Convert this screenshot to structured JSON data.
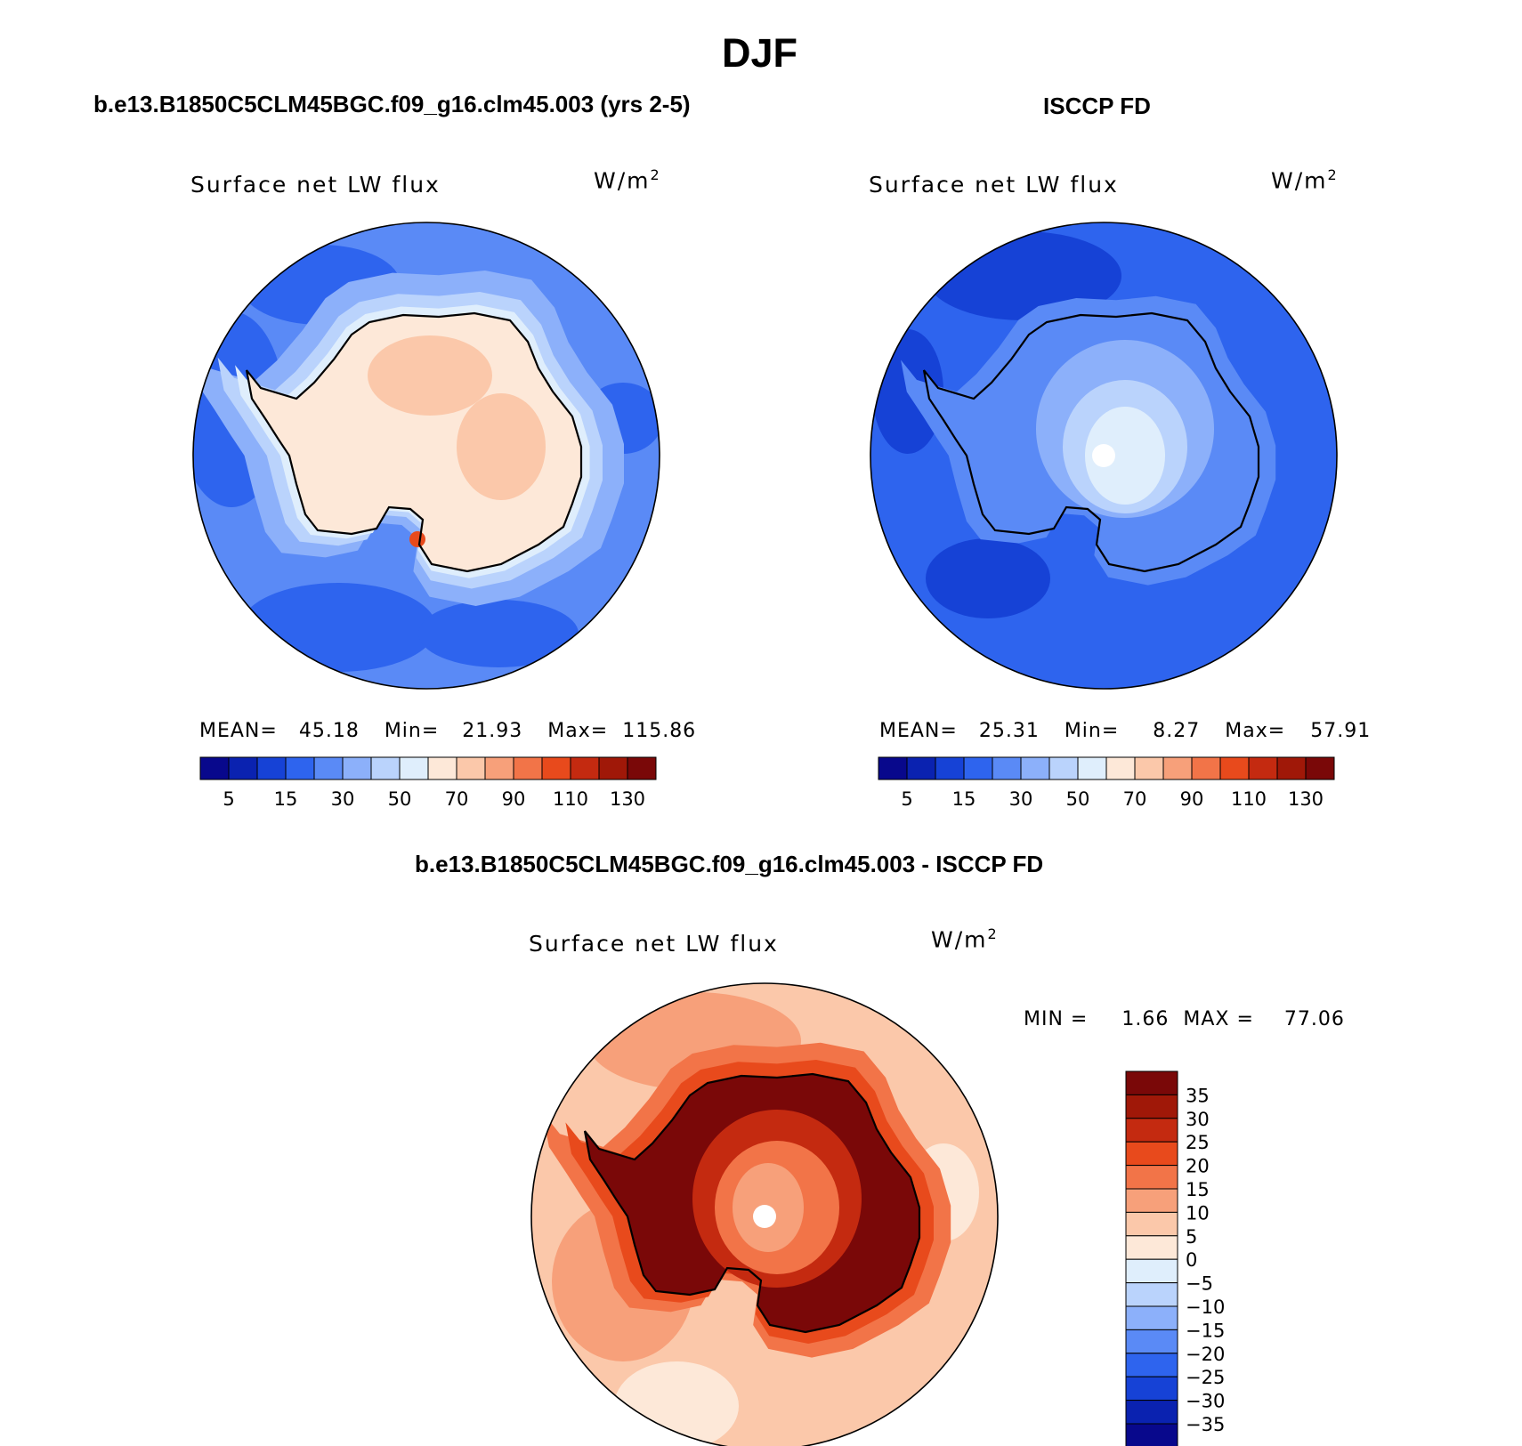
{
  "header": {
    "season": "DJF"
  },
  "panels": [
    {
      "title": "b.e13.B1850C5CLM45BGC.f09_g16.clm45.003 (yrs 2-5)",
      "variable": "Surface net LW flux",
      "units_base": "W/m",
      "units_exp": "2",
      "stats": {
        "mean_label": "MEAN=",
        "mean": "45.18",
        "min_label": "Min=",
        "min": "21.93",
        "max_label": "Max=",
        "max": "115.86"
      },
      "colorbar_labels": [
        "5",
        "15",
        "30",
        "50",
        "70",
        "90",
        "110",
        "130"
      ]
    },
    {
      "title": "ISCCP FD",
      "variable": "Surface net LW flux",
      "units_base": "W/m",
      "units_exp": "2",
      "stats": {
        "mean_label": "MEAN=",
        "mean": "25.31",
        "min_label": "Min=",
        "min": "8.27",
        "max_label": "Max=",
        "max": "57.91"
      },
      "colorbar_labels": [
        "5",
        "15",
        "30",
        "50",
        "70",
        "90",
        "110",
        "130"
      ]
    }
  ],
  "diff_panel": {
    "title": "b.e13.B1850C5CLM45BGC.f09_g16.clm45.003 - ISCCP FD",
    "variable": "Surface net LW flux",
    "units_base": "W/m",
    "units_exp": "2",
    "stats": {
      "min_label": "MIN =",
      "min": "1.66",
      "max_label": "MAX =",
      "max": "77.06"
    },
    "colorbar_labels": [
      "35",
      "30",
      "25",
      "20",
      "15",
      "10",
      "5",
      "0",
      "−5",
      "−10",
      "−15",
      "−20",
      "−25",
      "−30",
      "−35"
    ]
  },
  "palettes": {
    "absolute": [
      "#08088c",
      "#0a22b0",
      "#1642d6",
      "#2e64ee",
      "#5a8af6",
      "#8cb0fa",
      "#bad3fc",
      "#dfeefc",
      "#fde8d8",
      "#fbc8aa",
      "#f7a07a",
      "#f27448",
      "#e84a1c",
      "#c42a10",
      "#a01808",
      "#7a0808"
    ],
    "difference": [
      "#7a0808",
      "#a01808",
      "#c42a10",
      "#e84a1c",
      "#f27448",
      "#f7a07a",
      "#fbc8aa",
      "#fde8d8",
      "#dfeefc",
      "#bad3fc",
      "#8cb0fa",
      "#5a8af6",
      "#2e64ee",
      "#1642d6",
      "#0a22b0",
      "#08088c"
    ]
  }
}
